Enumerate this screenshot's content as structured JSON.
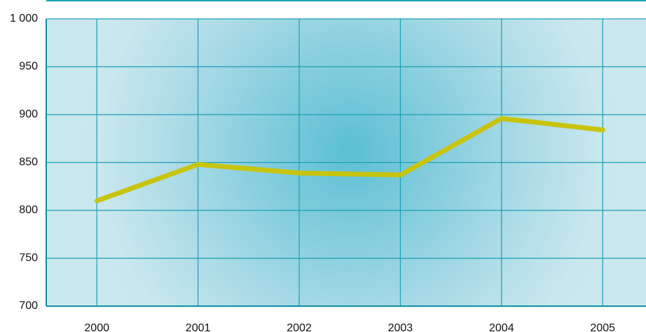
{
  "chart_data": {
    "type": "line",
    "categories": [
      "2000",
      "2001",
      "2002",
      "2003",
      "2004",
      "2005"
    ],
    "series": [
      {
        "color": "#c8c40e",
        "values": [
          810,
          848,
          839,
          837,
          896,
          884
        ]
      }
    ],
    "ylim": [
      700,
      1000
    ],
    "yticks": [
      700,
      750,
      800,
      850,
      900,
      950,
      {
        "value": 1000,
        "label": "1 000"
      }
    ],
    "grid": true
  }
}
